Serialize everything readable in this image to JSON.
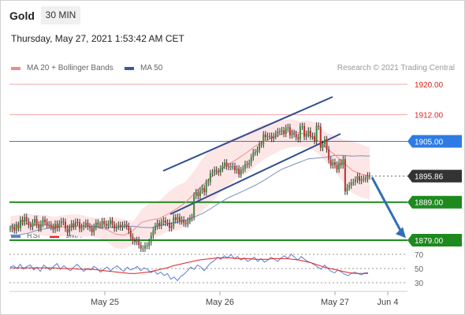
{
  "header": {
    "asset": "Gold",
    "timeframe": "30 MIN",
    "timestamp": "Thursday, May 27, 2021 1:53:42 AM CET"
  },
  "legend": {
    "price": [
      {
        "label": "MA 20 + Bollinger Bands",
        "color": "#f08c8c"
      },
      {
        "label": "MA 50",
        "color": "#3a5a9a"
      }
    ],
    "rsi": [
      {
        "label": "RSI",
        "color": "#5b7fd4"
      },
      {
        "label": "9MA",
        "color": "#e02020"
      }
    ]
  },
  "credit": "Research © 2021 Trading Central",
  "chart_data": [
    {
      "type": "candlestick",
      "title": "",
      "ylim": [
        1871,
        1924
      ],
      "x_ticks": [
        "May 25",
        "May 26",
        "May 27",
        "Jun 4"
      ],
      "levels": [
        {
          "value": 1920.0,
          "label": "1920.00",
          "style": "resistance-light",
          "color": "#f2a4a4"
        },
        {
          "value": 1912.0,
          "label": "1912.00",
          "style": "resistance-light",
          "color": "#f2a4a4"
        },
        {
          "value": 1905.0,
          "label": "1905.00",
          "style": "pivot",
          "color": "#2f7be5"
        },
        {
          "value": 1895.86,
          "label": "1895.86",
          "style": "last-price",
          "color": "#333333"
        },
        {
          "value": 1889.0,
          "label": "1889.00",
          "style": "support",
          "color": "#1d8a1d"
        },
        {
          "value": 1879.0,
          "label": "1879.00",
          "style": "support",
          "color": "#1d8a1d"
        }
      ],
      "channel": {
        "upper": [
          [
            "May 25 ~19:00",
            1889
          ],
          [
            "May 27 ~01:00",
            1914
          ]
        ],
        "lower": [
          [
            "May 25 ~20:00",
            1876
          ],
          [
            "May 27 ~01:30",
            1902
          ]
        ]
      },
      "forecast_arrow": {
        "from": 1895.5,
        "to": 1880
      },
      "series": [
        {
          "name": "Close",
          "values": [
            1882,
            1882.5,
            1881.6,
            1883,
            1882.2,
            1884.4,
            1883.7,
            1885.1,
            1884,
            1883,
            1882.5,
            1883.6,
            1884.6,
            1883.1,
            1882.1,
            1883.3,
            1884.4,
            1883.8,
            1883,
            1883.1,
            1882.5,
            1881.8,
            1883.3,
            1882.2,
            1883.4,
            1884,
            1883.8,
            1882.1,
            1881,
            1882.3,
            1883.4,
            1882.6,
            1883.8,
            1883.7,
            1882,
            1882.5,
            1883,
            1883.6,
            1882.6,
            1882.2,
            1881.1,
            1882.5,
            1883.6,
            1883.1,
            1882.9,
            1884,
            1883.3,
            1882.8,
            1883.3,
            1884.2,
            1883.1,
            1882.1,
            1882.6,
            1883,
            1882.4,
            1883,
            1883.2,
            1882.7,
            1881.5,
            1879.9,
            1878.8,
            1878.6,
            1879,
            1877.7,
            1876.8,
            1876.8,
            1877.6,
            1877.5,
            1878.5,
            1880.2,
            1881.5,
            1882.7,
            1883.5,
            1882.8,
            1883.8,
            1884.2,
            1883.6,
            1883.6,
            1882.2,
            1882.8,
            1885,
            1884.3,
            1885.1,
            1884,
            1884.4,
            1883.5,
            1883.3,
            1884.1,
            1884.8,
            1885.1,
            1890.7,
            1891.6,
            1890.6,
            1892.1,
            1892.7,
            1891.6,
            1894.1,
            1894.3,
            1896.6,
            1896.8,
            1897.5,
            1897.1,
            1896.8,
            1897.8,
            1898.6,
            1899.4,
            1898.4,
            1898.3,
            1898.4,
            1898.5,
            1897.4,
            1897.8,
            1896.3,
            1897.4,
            1897.8,
            1899,
            1898.8,
            1899.3,
            1900.8,
            1902.1,
            1902.1,
            1902.8,
            1904.2,
            1904.2,
            1906.8,
            1906.1,
            1906.4,
            1906.4,
            1905.7,
            1906.4,
            1907,
            1907.6,
            1907.6,
            1907.9,
            1907,
            1908.5,
            1908.7,
            1906.6,
            1907.2,
            1906.9,
            1906.1,
            1905.6,
            1908.9,
            1909,
            1906.2,
            1906.9,
            1907.8,
            1906.3,
            1906.4,
            1905.1,
            1909.1,
            1908.9,
            1903.3,
            1904.3,
            1905.5,
            1902.9,
            1900.1,
            1898.7,
            1899.5,
            1898.8,
            1897.6,
            1899.4,
            1898.7,
            1900.3,
            1891.8,
            1892.9,
            1893.4,
            1894.2,
            1894.3,
            1894.9,
            1895.8,
            1894.6,
            1895.1,
            1895.2,
            1895.1,
            1896,
            1895.86
          ]
        },
        {
          "name": "MA 20",
          "values": [
            1882.5,
            1883.3,
            1883.3,
            1883,
            1883,
            1882.6,
            1882.5,
            1882.7,
            1882.7,
            1882.7,
            1882.3,
            1881.8,
            1880.6,
            1880.3,
            1881.6,
            1883.7,
            1884.3,
            1884.7,
            1885.9,
            1887.3,
            1888.9,
            1891.3,
            1893.6,
            1895.7,
            1897.5,
            1899.1,
            1900.5,
            1902.1,
            1903.8,
            1905,
            1906,
            1906.9,
            1907.6,
            1907.2,
            1906.7,
            1905.4,
            1903.4,
            1901.5,
            1899.5,
            1897.4,
            1896.4,
            1895.9
          ]
        },
        {
          "name": "MA 50",
          "values": [
            1880.4,
            1880.4,
            1880.8,
            1881.6,
            1882,
            1882.4,
            1882.5,
            1882.5,
            1882.7,
            1882.6,
            1882.6,
            1882.3,
            1882.4,
            1882.6,
            1882.7,
            1882.4,
            1882.3,
            1882.8,
            1883.3,
            1883.7,
            1884.2,
            1885.1,
            1886.1,
            1887.5,
            1889,
            1890.3,
            1891.3,
            1892.4,
            1893.5,
            1894.8,
            1896.3,
            1897.7,
            1898.6,
            1899.5,
            1900.4,
            1900.6,
            1900.8,
            1901.3,
            1901.3,
            1901.1,
            1901.2,
            1901.1
          ]
        },
        {
          "name": "Bollinger Upper",
          "values": [
            1885.3,
            1885.7,
            1886,
            1885.6,
            1885.7,
            1885.1,
            1885.6,
            1885.8,
            1885.7,
            1885.1,
            1884.8,
            1885,
            1885,
            1884.5,
            1883.9,
            1887.1,
            1888.9,
            1889.3,
            1891.6,
            1893.3,
            1894.3,
            1897.3,
            1900.7,
            1903.1,
            1904.2,
            1905.5,
            1906.4,
            1907.2,
            1908.5,
            1909.5,
            1910,
            1910.5,
            1910.9,
            1910.3,
            1910.5,
            1909.8,
            1907.4,
            1906.4,
            1905.4,
            1905.1,
            1904.2,
            1903.4
          ]
        },
        {
          "name": "Bollinger Lower",
          "values": [
            1881.1,
            1880.7,
            1880.7,
            1880.5,
            1880.1,
            1880.1,
            1880.1,
            1880.5,
            1879.8,
            1880,
            1879.6,
            1878.6,
            1876.9,
            1876.7,
            1877.8,
            1879.2,
            1879.5,
            1880.2,
            1881.2,
            1881.6,
            1882.5,
            1884.5,
            1886.9,
            1889,
            1891.7,
            1893.6,
            1895.4,
            1896.5,
            1898.6,
            1900.3,
            1901.6,
            1902.8,
            1903.5,
            1903.6,
            1903.3,
            1902,
            1899.7,
            1897.2,
            1894.2,
            1891.5,
            1890.3,
            1889.6
          ]
        }
      ]
    },
    {
      "type": "line",
      "title": "RSI",
      "ylim": [
        20,
        80
      ],
      "y_ticks": [
        70,
        50,
        30
      ],
      "series": [
        {
          "name": "RSI",
          "values": [
            52,
            54,
            50,
            56,
            49,
            53,
            55,
            48,
            52,
            46,
            55,
            51,
            48,
            53,
            57,
            49,
            54,
            50,
            47,
            52,
            56,
            51,
            46,
            50,
            48,
            53,
            50,
            45,
            49,
            52,
            47,
            51,
            54,
            49,
            46,
            52,
            48,
            50,
            53,
            47,
            51,
            49,
            44,
            47,
            42,
            45,
            40,
            43,
            35,
            38,
            33,
            39,
            42,
            47,
            52,
            49,
            55,
            52,
            47,
            53,
            58,
            61,
            66,
            63,
            68,
            65,
            70,
            64,
            67,
            62,
            65,
            60,
            63,
            66,
            60,
            64,
            59,
            62,
            66,
            63,
            60,
            65,
            68,
            64,
            70,
            66,
            62,
            67,
            63,
            60,
            58,
            55,
            52,
            49,
            55,
            50,
            46,
            44,
            48,
            45,
            42,
            40,
            43,
            45,
            43,
            41,
            44,
            44
          ]
        },
        {
          "name": "9MA",
          "values": [
            51,
            51,
            51,
            51,
            51,
            51,
            51,
            51,
            50,
            50,
            50,
            49,
            49,
            49,
            48,
            47,
            46,
            45,
            44,
            43,
            43,
            44,
            45,
            47,
            49,
            51,
            54,
            56,
            58,
            60,
            62,
            63,
            64,
            65,
            65,
            65,
            64,
            64,
            64,
            63,
            63,
            63,
            64,
            64,
            64,
            63,
            62,
            60,
            58,
            55,
            52,
            50,
            48,
            46,
            44,
            43,
            43,
            43
          ]
        }
      ]
    }
  ]
}
